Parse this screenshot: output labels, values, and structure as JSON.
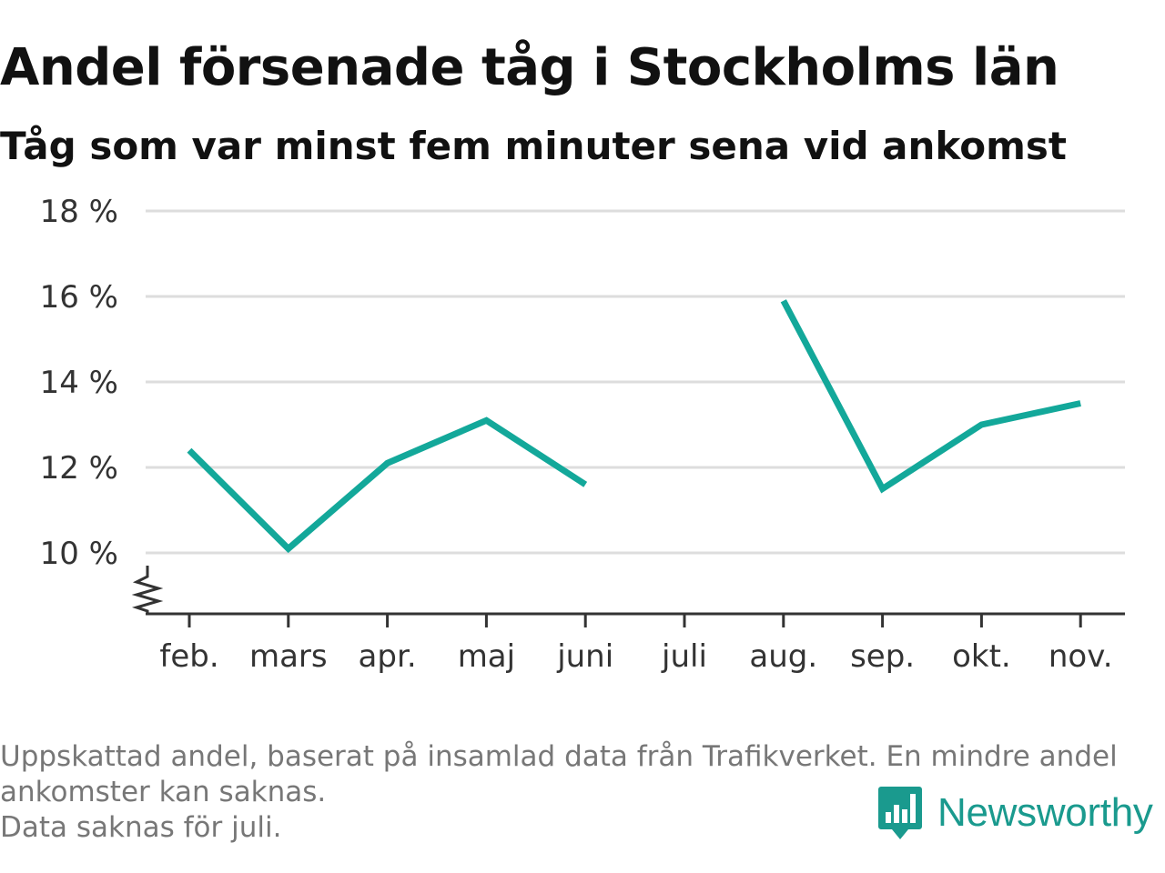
{
  "header": {
    "title": "Andel försenade tåg i Stockholms län",
    "subtitle": "Tåg som var minst fem minuter sena vid ankomst"
  },
  "chart_data": {
    "type": "line",
    "title": "Andel försenade tåg i Stockholms län",
    "subtitle": "Tåg som var minst fem minuter sena vid ankomst",
    "categories": [
      "feb.",
      "mars",
      "apr.",
      "maj",
      "juni",
      "juli",
      "aug.",
      "sep.",
      "okt.",
      "nov."
    ],
    "series": [
      {
        "values": [
          12.4,
          10.1,
          12.1,
          13.1,
          11.6,
          null,
          15.9,
          11.5,
          13.0,
          13.5
        ],
        "color": "#13a89a"
      }
    ],
    "y_ticks": [
      10,
      12,
      14,
      16,
      18
    ],
    "y_tick_labels": [
      "10 %",
      "12 %",
      "14 %",
      "16 %",
      "18 %"
    ],
    "ylim": [
      8.6,
      18
    ],
    "y_axis_break": true,
    "grid": true,
    "xlabel": "",
    "ylabel": ""
  },
  "footer": {
    "note_line1": "Uppskattad andel, baserat på insamlad data från Trafikverket. En mindre andel",
    "note_line2": "ankomster kan saknas.",
    "note_line3": "Data saknas för juli."
  },
  "brand": {
    "name": "Newsworthy",
    "icon": "newsworthy-logo-icon",
    "color": "#1a9a8e"
  }
}
